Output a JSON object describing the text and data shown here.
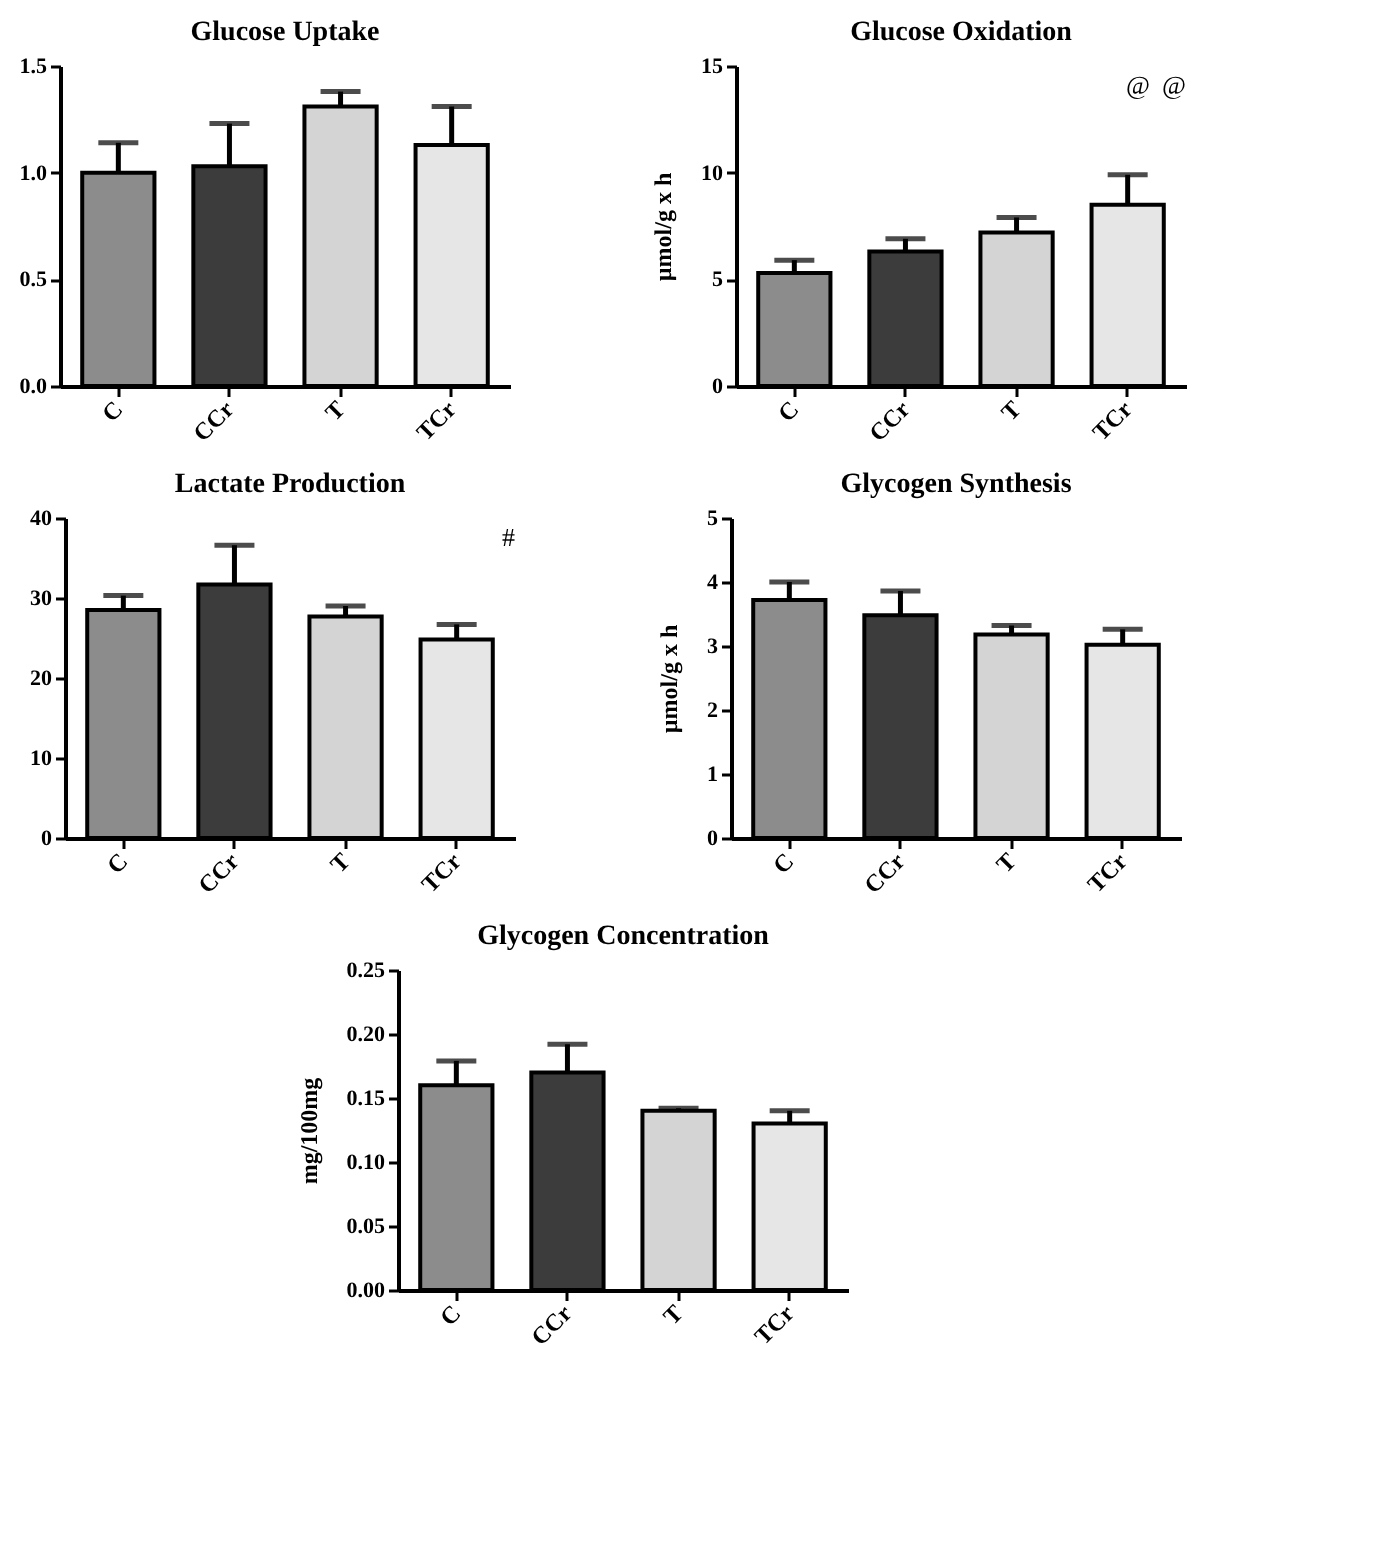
{
  "chart_data": [
    {
      "type": "bar",
      "title": "Glucose Uptake",
      "categories": [
        "C",
        "CCr",
        "T",
        "TCr"
      ],
      "values": [
        1.0,
        1.03,
        1.31,
        1.13
      ],
      "errors": [
        0.14,
        0.2,
        0.07,
        0.18
      ],
      "colors": [
        "#8c8c8c",
        "#3c3c3c",
        "#d4d4d4",
        "#e6e6e6"
      ],
      "ylim": [
        0,
        1.5
      ],
      "yticks": [
        {
          "value": 0,
          "label": "0.0"
        },
        {
          "value": 0.5,
          "label": "0.5"
        },
        {
          "value": 1,
          "label": "1.0"
        },
        {
          "value": 1.5,
          "label": "1.5"
        }
      ]
    },
    {
      "type": "bar",
      "title": "Glucose Oxidation",
      "ylabel": "µmol/g x h",
      "categories": [
        "C",
        "CCr",
        "T",
        "TCr"
      ],
      "values": [
        5.3,
        6.3,
        7.2,
        8.5
      ],
      "errors": [
        0.6,
        0.6,
        0.7,
        1.4
      ],
      "colors": [
        "#8c8c8c",
        "#3c3c3c",
        "#d4d4d4",
        "#e6e6e6"
      ],
      "ylim": [
        0,
        15
      ],
      "yticks": [
        0,
        5,
        10,
        15
      ],
      "annotations": [
        "@",
        "@"
      ]
    },
    {
      "type": "bar",
      "title": "Lactate Production",
      "categories": [
        "C",
        "CCr",
        "T",
        "TCr"
      ],
      "values": [
        28.5,
        31.7,
        27.7,
        24.8
      ],
      "errors": [
        1.8,
        4.9,
        1.3,
        1.9
      ],
      "colors": [
        "#8c8c8c",
        "#3c3c3c",
        "#d4d4d4",
        "#e6e6e6"
      ],
      "ylim": [
        0,
        40
      ],
      "yticks": [
        0,
        10,
        20,
        30,
        40
      ],
      "annotations": [
        "#"
      ]
    },
    {
      "type": "bar",
      "title": "Glycogen Synthesis",
      "ylabel": "µmol/g x h",
      "categories": [
        "C",
        "CCr",
        "T",
        "TCr"
      ],
      "values": [
        3.72,
        3.48,
        3.18,
        3.02
      ],
      "errors": [
        0.28,
        0.38,
        0.14,
        0.24
      ],
      "colors": [
        "#8c8c8c",
        "#3c3c3c",
        "#d4d4d4",
        "#e6e6e6"
      ],
      "ylim": [
        0,
        5
      ],
      "yticks": [
        0,
        1,
        2,
        3,
        4,
        5
      ]
    },
    {
      "type": "bar",
      "title": "Glycogen Concentration",
      "ylabel": "mg/100mg",
      "categories": [
        "C",
        "CCr",
        "T",
        "TCr"
      ],
      "values": [
        0.16,
        0.17,
        0.14,
        0.13
      ],
      "errors": [
        0.019,
        0.022,
        0.002,
        0.01
      ],
      "colors": [
        "#8c8c8c",
        "#3c3c3c",
        "#d4d4d4",
        "#e6e6e6"
      ],
      "ylim": [
        0,
        0.25
      ],
      "yticks": [
        {
          "value": 0,
          "label": "0.00"
        },
        {
          "value": 0.05,
          "label": "0.05"
        },
        {
          "value": 0.1,
          "label": "0.10"
        },
        {
          "value": 0.15,
          "label": "0.15"
        },
        {
          "value": 0.2,
          "label": "0.20"
        },
        {
          "value": 0.25,
          "label": "0.25"
        }
      ]
    }
  ]
}
